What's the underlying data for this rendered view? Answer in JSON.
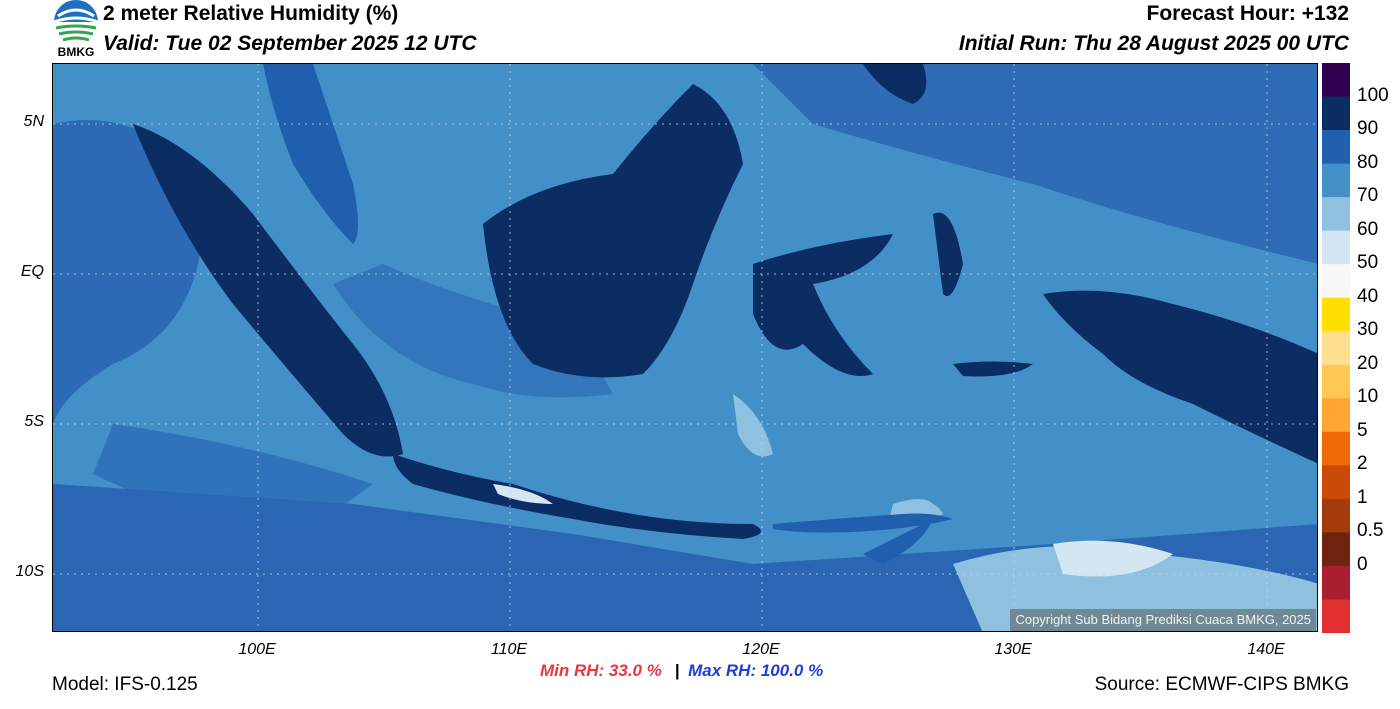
{
  "header": {
    "title": "2 meter Relative Humidity (%)",
    "valid": "Valid: Tue 02 September 2025 12 UTC",
    "forecast_hour": "Forecast Hour: +132",
    "initial_run": "Initial Run: Thu 28 August 2025 00 UTC",
    "logo_text": "BMKG"
  },
  "map": {
    "lat_ticks": [
      "5N",
      "EQ",
      "5S",
      "10S"
    ],
    "lon_ticks": [
      "100E",
      "110E",
      "120E",
      "130E",
      "140E"
    ],
    "copyright": "Copyright Sub Bidang Prediksi Cuaca BMKG, 2025"
  },
  "colorbar": {
    "labels": [
      "100",
      "90",
      "80",
      "70",
      "60",
      "50",
      "40",
      "30",
      "20",
      "10",
      "5",
      "2",
      "1",
      "0.5",
      "0"
    ],
    "colors": [
      "#300050",
      "#0b2d63",
      "#1f5fae",
      "#4390c8",
      "#8ec0e0",
      "#d4e6f1",
      "#f7f7f7",
      "#ffe000",
      "#ffe08e",
      "#ffc855",
      "#ffa531",
      "#f06b08",
      "#cb4b06",
      "#a53a0a",
      "#6e2410",
      "#a82030",
      "#e03030"
    ]
  },
  "footer": {
    "model": "Model: IFS-0.125",
    "source": "Source: ECMWF-CIPS BMKG",
    "min_rh": "Min RH:  33.0 %",
    "separator": "|",
    "max_rh": "Max RH: 100.0 %"
  },
  "colors": {
    "sea_base": "#4390c8",
    "sea_moist": "#2a66b3",
    "land_wet": "#0b2d63",
    "dry_patch": "#8ec0e0"
  }
}
